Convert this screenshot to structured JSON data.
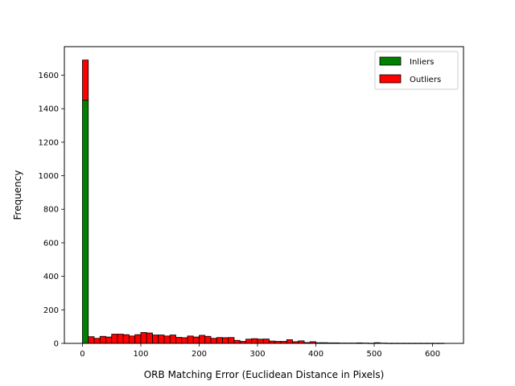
{
  "chart_data": {
    "type": "bar",
    "subtype": "stacked-histogram",
    "title": "",
    "xlabel": "ORB Matching Error (Euclidean Distance in Pixels)",
    "ylabel": "Frequency",
    "xlim": [
      -31,
      653
    ],
    "ylim": [
      0,
      1770
    ],
    "xticks": [
      0,
      100,
      200,
      300,
      400,
      500,
      600
    ],
    "yticks": [
      0,
      200,
      400,
      600,
      800,
      1000,
      1200,
      1400,
      1600
    ],
    "bin_width": 10,
    "bin_starts": [
      0,
      10,
      20,
      30,
      40,
      50,
      60,
      70,
      80,
      90,
      100,
      110,
      120,
      130,
      140,
      150,
      160,
      170,
      180,
      190,
      200,
      210,
      220,
      230,
      240,
      250,
      260,
      270,
      280,
      290,
      300,
      310,
      320,
      330,
      340,
      350,
      360,
      370,
      380,
      390,
      400,
      410,
      420,
      430,
      440,
      450,
      460,
      470,
      480,
      490,
      500,
      510,
      520,
      530,
      540,
      550,
      560,
      570,
      580,
      590,
      600,
      610
    ],
    "series": [
      {
        "name": "Inliers",
        "color": "#008000",
        "values": [
          1450,
          0,
          0,
          0,
          0,
          0,
          0,
          0,
          0,
          0,
          0,
          0,
          0,
          0,
          0,
          0,
          0,
          0,
          0,
          0,
          0,
          0,
          0,
          0,
          0,
          0,
          0,
          0,
          0,
          0,
          0,
          0,
          0,
          0,
          0,
          0,
          0,
          0,
          0,
          0,
          0,
          0,
          0,
          0,
          0,
          0,
          0,
          0,
          0,
          0,
          0,
          0,
          0,
          0,
          0,
          0,
          0,
          0,
          0,
          0,
          0,
          0
        ]
      },
      {
        "name": "Outliers",
        "color": "#ff0000",
        "values": [
          240,
          40,
          30,
          42,
          38,
          55,
          55,
          52,
          44,
          52,
          65,
          62,
          50,
          50,
          44,
          50,
          36,
          34,
          44,
          38,
          48,
          42,
          30,
          35,
          34,
          35,
          18,
          12,
          25,
          28,
          25,
          26,
          14,
          12,
          12,
          22,
          10,
          15,
          5,
          10,
          4,
          4,
          3,
          3,
          2,
          2,
          2,
          3,
          2,
          1,
          4,
          2,
          1,
          1,
          1,
          1,
          1,
          1,
          1,
          1,
          1,
          1
        ]
      }
    ],
    "legend": {
      "position": "top-right"
    },
    "grid": false
  }
}
